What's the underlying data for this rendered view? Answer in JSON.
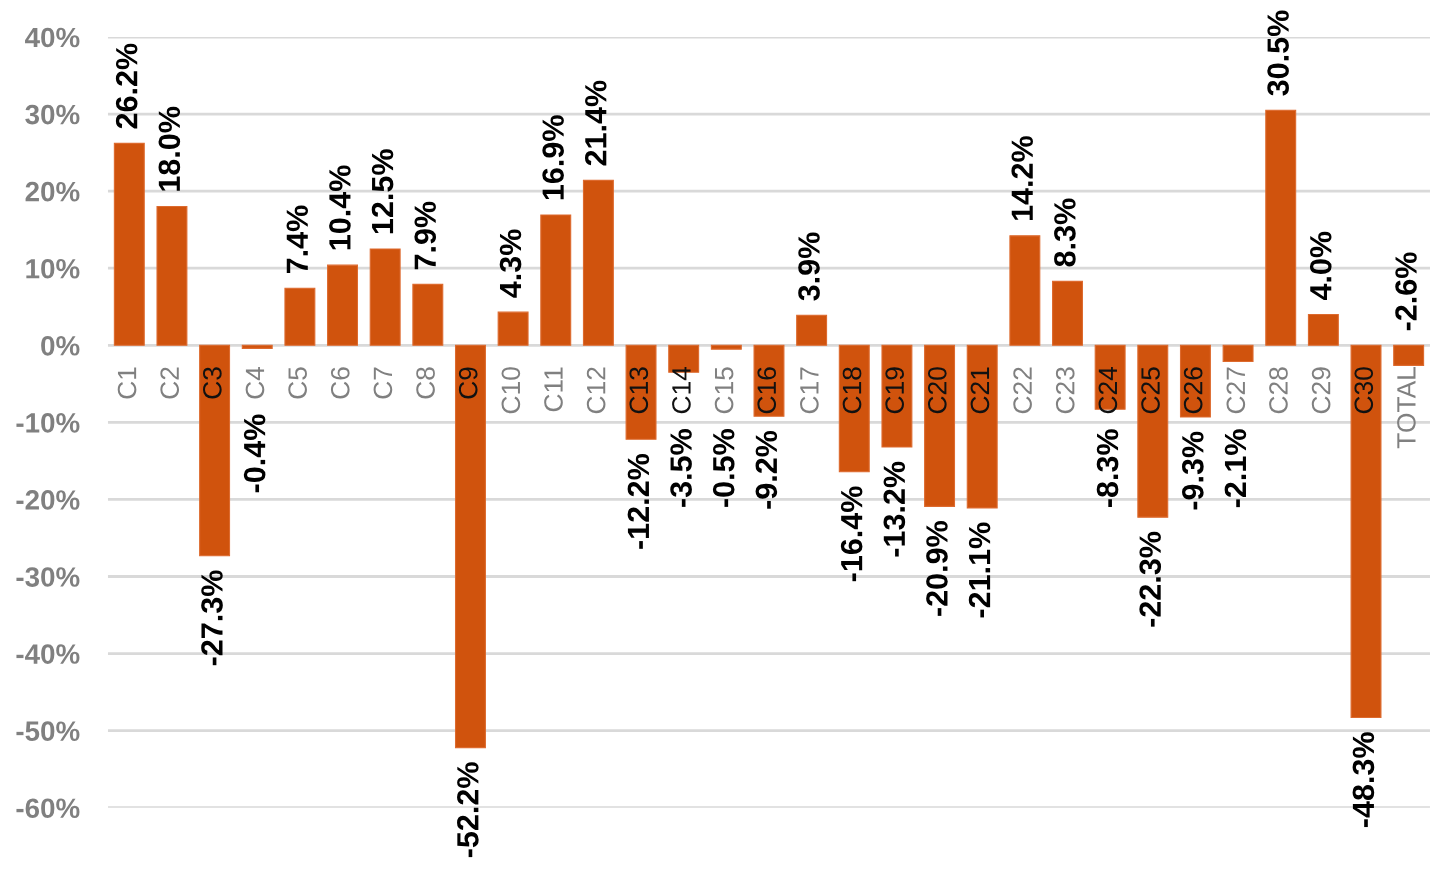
{
  "chart_data": {
    "type": "bar",
    "categories": [
      "C1",
      "C2",
      "C3",
      "C4",
      "C5",
      "C6",
      "C7",
      "C8",
      "C9",
      "C10",
      "C11",
      "C12",
      "C13",
      "C14",
      "C15",
      "C16",
      "C17",
      "C18",
      "C19",
      "C20",
      "C21",
      "C22",
      "C23",
      "C24",
      "C25",
      "C26",
      "C27",
      "C28",
      "C29",
      "C30",
      "TOTAL"
    ],
    "values": [
      26.2,
      18.0,
      -27.3,
      -0.4,
      7.4,
      10.4,
      12.5,
      7.9,
      -52.2,
      4.3,
      16.9,
      21.4,
      -12.2,
      -3.5,
      -0.5,
      -9.2,
      3.9,
      -16.4,
      -13.2,
      -20.9,
      -21.1,
      14.2,
      8.3,
      -8.3,
      -22.3,
      -9.3,
      -2.1,
      30.5,
      4.0,
      -48.3,
      -2.6
    ],
    "value_labels": [
      "26.2%",
      "18.0%",
      "-27.3%",
      "-0.4%",
      "7.4%",
      "10.4%",
      "12.5%",
      "7.9%",
      "-52.2%",
      "4.3%",
      "16.9%",
      "21.4%",
      "-12.2%",
      "-3.5%",
      "-0.5%",
      "-9.2%",
      "3.9%",
      "-16.4%",
      "-13.2%",
      "-20.9%",
      "-21.1%",
      "14.2%",
      "8.3%",
      "-8.3%",
      "-22.3%",
      "-9.3%",
      "-2.1%",
      "30.5%",
      "4.0%",
      "-48.3%",
      "-2.6%"
    ],
    "color": "#d0530d",
    "ylim": [
      -60,
      40
    ],
    "yticks": [
      {
        "value": 40,
        "label": "40%"
      },
      {
        "value": 30,
        "label": "30%"
      },
      {
        "value": 20,
        "label": "20%"
      },
      {
        "value": 10,
        "label": "10%"
      },
      {
        "value": 0,
        "label": "0%"
      },
      {
        "value": -10,
        "label": "-10%"
      },
      {
        "value": -20,
        "label": "-20%"
      },
      {
        "value": -30,
        "label": "-30%"
      },
      {
        "value": -40,
        "label": "-40%"
      },
      {
        "value": -50,
        "label": "-50%"
      },
      {
        "value": -60,
        "label": "-60%"
      }
    ],
    "grid": "y"
  }
}
